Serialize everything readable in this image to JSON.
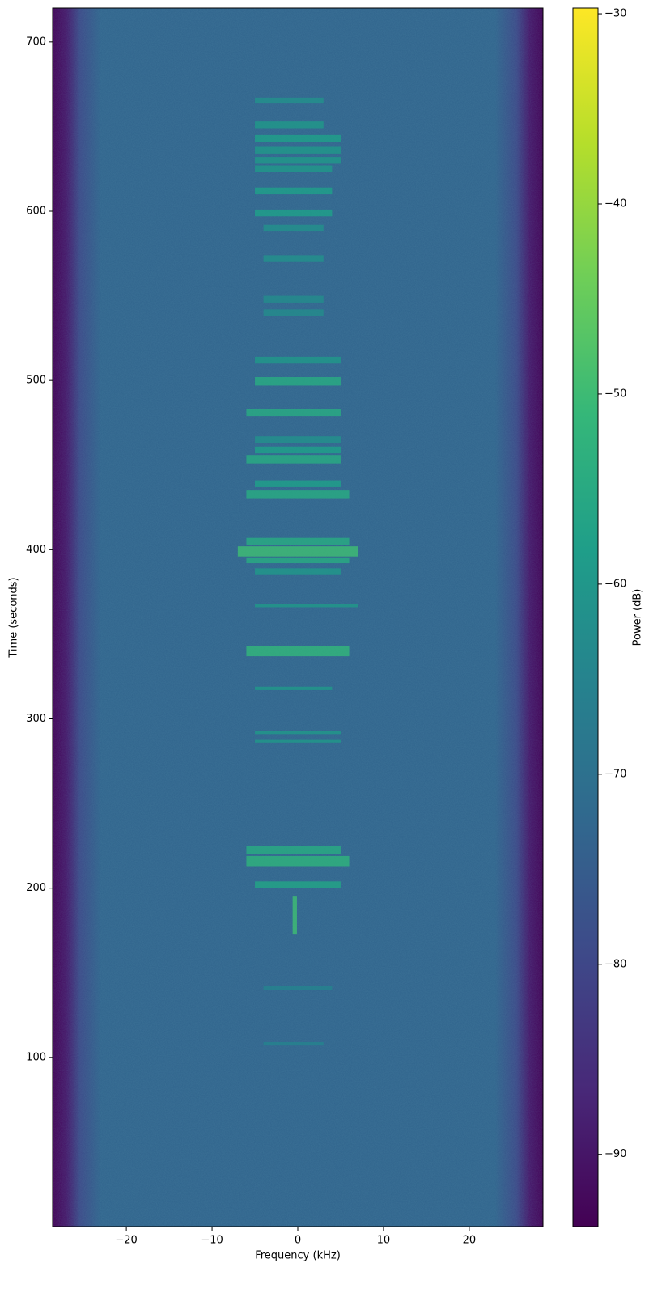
{
  "chart_data": {
    "type": "spectrogram",
    "xlabel": "Frequency (kHz)",
    "ylabel": "Time (seconds)",
    "colorbar_label": "Power (dB)",
    "colormap": "viridis",
    "xlim": [
      -28.6,
      28.6
    ],
    "ylim": [
      0,
      720
    ],
    "clim": [
      -93.8,
      -29.7
    ],
    "xticks": [
      {
        "value": -20,
        "label": "−20"
      },
      {
        "value": -10,
        "label": "−10"
      },
      0,
      10,
      20
    ],
    "yticks": [
      100,
      200,
      300,
      400,
      500,
      600,
      700
    ],
    "cticks": [
      {
        "value": -90,
        "label": "−90"
      },
      {
        "value": -80,
        "label": "−80"
      },
      {
        "value": -70,
        "label": "−70"
      },
      {
        "value": -60,
        "label": "−60"
      },
      {
        "value": -50,
        "label": "−50"
      },
      {
        "value": -40,
        "label": "−40"
      },
      {
        "value": -30,
        "label": "−30"
      }
    ],
    "floor": {
      "freq": [
        -28.6,
        -27,
        -25.5,
        -23,
        23,
        25.5,
        27,
        28.6
      ],
      "power": [
        -93,
        -89,
        -79,
        -73,
        -73,
        -79,
        -89,
        -93
      ]
    },
    "bursts": [
      {
        "t0": 664,
        "t1": 667,
        "f0": -5,
        "f1": 3,
        "power": -62
      },
      {
        "t0": 649,
        "t1": 653,
        "f0": -5,
        "f1": 3,
        "power": -60
      },
      {
        "t0": 641,
        "t1": 645,
        "f0": -5,
        "f1": 5,
        "power": -58
      },
      {
        "t0": 634,
        "t1": 638,
        "f0": -5,
        "f1": 5,
        "power": -60
      },
      {
        "t0": 628,
        "t1": 632,
        "f0": -5,
        "f1": 5,
        "power": -60
      },
      {
        "t0": 623,
        "t1": 627,
        "f0": -5,
        "f1": 4,
        "power": -60
      },
      {
        "t0": 610,
        "t1": 614,
        "f0": -5,
        "f1": 4,
        "power": -58
      },
      {
        "t0": 597,
        "t1": 601,
        "f0": -5,
        "f1": 4,
        "power": -58
      },
      {
        "t0": 588,
        "t1": 592,
        "f0": -4,
        "f1": 3,
        "power": -62
      },
      {
        "t0": 570,
        "t1": 574,
        "f0": -4,
        "f1": 3,
        "power": -62
      },
      {
        "t0": 546,
        "t1": 550,
        "f0": -4,
        "f1": 3,
        "power": -63
      },
      {
        "t0": 538,
        "t1": 542,
        "f0": -4,
        "f1": 3,
        "power": -63
      },
      {
        "t0": 510,
        "t1": 514,
        "f0": -5,
        "f1": 5,
        "power": -60
      },
      {
        "t0": 497,
        "t1": 502,
        "f0": -5,
        "f1": 5,
        "power": -55
      },
      {
        "t0": 479,
        "t1": 483,
        "f0": -6,
        "f1": 5,
        "power": -55
      },
      {
        "t0": 463,
        "t1": 467,
        "f0": -5,
        "f1": 5,
        "power": -62
      },
      {
        "t0": 457,
        "t1": 461,
        "f0": -5,
        "f1": 5,
        "power": -58
      },
      {
        "t0": 451,
        "t1": 456,
        "f0": -6,
        "f1": 5,
        "power": -55
      },
      {
        "t0": 437,
        "t1": 441,
        "f0": -5,
        "f1": 5,
        "power": -58
      },
      {
        "t0": 430,
        "t1": 435,
        "f0": -6,
        "f1": 6,
        "power": -55
      },
      {
        "t0": 403,
        "t1": 407,
        "f0": -6,
        "f1": 6,
        "power": -55
      },
      {
        "t0": 396,
        "t1": 402,
        "f0": -7,
        "f1": 7,
        "power": -50
      },
      {
        "t0": 392,
        "t1": 395,
        "f0": -6,
        "f1": 6,
        "power": -55
      },
      {
        "t0": 385,
        "t1": 389,
        "f0": -5,
        "f1": 5,
        "power": -60
      },
      {
        "t0": 366,
        "t1": 368,
        "f0": -5,
        "f1": 7,
        "power": -60
      },
      {
        "t0": 337,
        "t1": 343,
        "f0": -6,
        "f1": 6,
        "power": -52
      },
      {
        "t0": 317,
        "t1": 319,
        "f0": -5,
        "f1": 4,
        "power": -60
      },
      {
        "t0": 291,
        "t1": 293,
        "f0": -5,
        "f1": 5,
        "power": -60
      },
      {
        "t0": 286,
        "t1": 288,
        "f0": -5,
        "f1": 5,
        "power": -60
      },
      {
        "t0": 220,
        "t1": 225,
        "f0": -6,
        "f1": 5,
        "power": -55
      },
      {
        "t0": 213,
        "t1": 219,
        "f0": -6,
        "f1": 6,
        "power": -53
      },
      {
        "t0": 200,
        "t1": 204,
        "f0": -5,
        "f1": 5,
        "power": -57
      },
      {
        "t0": 173,
        "t1": 195,
        "f0": -0.6,
        "f1": -0.1,
        "power": -50
      },
      {
        "t0": 140,
        "t1": 142,
        "f0": -4,
        "f1": 4,
        "power": -65
      },
      {
        "t0": 107,
        "t1": 109,
        "f0": -4,
        "f1": 3,
        "power": -65
      }
    ]
  }
}
